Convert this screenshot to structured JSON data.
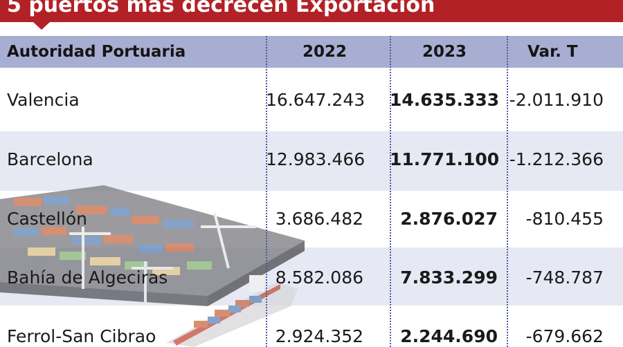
{
  "title": "5 puertos más decrecen Exportación",
  "colors": {
    "banner": "#b22126",
    "header": "#a8aed2",
    "row_shade": "#e6e8f3",
    "divider": "#4a5aa0"
  },
  "table": {
    "headers": {
      "name": "Autoridad Portuaria",
      "y2022": "2022",
      "y2023": "2023",
      "var": "Var. T"
    },
    "rows": [
      {
        "name": "Valencia",
        "y2022": "16.647.243",
        "y2023": "14.635.333",
        "var": "-2.011.910"
      },
      {
        "name": "Barcelona",
        "y2022": "12.983.466",
        "y2023": "11.771.100",
        "var": "-1.212.366"
      },
      {
        "name": "Castellón",
        "y2022": "3.686.482",
        "y2023": "2.876.027",
        "var": "-810.455"
      },
      {
        "name": "Bahía de Algeciras",
        "y2022": "8.582.086",
        "y2023": "7.833.299",
        "var": "-748.787"
      },
      {
        "name": "Ferrol-San Cibrao",
        "y2022": "2.924.352",
        "y2023": "2.244.690",
        "var": "-679.662"
      }
    ]
  }
}
